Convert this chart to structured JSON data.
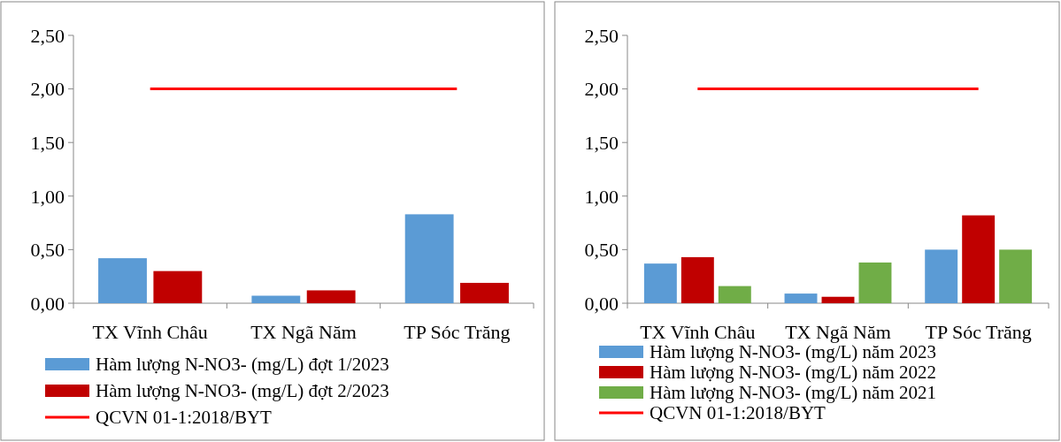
{
  "chart_data": [
    {
      "type": "bar",
      "categories": [
        "TX Vĩnh Châu",
        "TX Ngã Năm",
        "TP Sóc Trăng"
      ],
      "ylim": [
        0,
        2.5
      ],
      "yticks": [
        {
          "value": 0,
          "label": "0,00"
        },
        {
          "value": 0.5,
          "label": "0,50"
        },
        {
          "value": 1,
          "label": "1,00"
        },
        {
          "value": 1.5,
          "label": "1,50"
        },
        {
          "value": 2,
          "label": "2,00"
        },
        {
          "value": 2.5,
          "label": "2,50"
        }
      ],
      "legend": "bottom",
      "grid": false,
      "series": [
        {
          "name": "Hàm lượng N-NO3- (mg/L) đợt 1/2023",
          "color": "#5b9bd5",
          "values": [
            0.42,
            0.07,
            0.83
          ]
        },
        {
          "name": "Hàm lượng N-NO3- (mg/L) đợt 2/2023",
          "color": "#c00000",
          "values": [
            0.3,
            0.12,
            0.19
          ]
        },
        {
          "name": "QCVN 01-1:2018/BYT",
          "type": "line",
          "color": "#ff0000",
          "values": [
            2,
            2,
            2
          ]
        }
      ]
    },
    {
      "type": "bar",
      "categories": [
        "TX Vĩnh Châu",
        "TX Ngã Năm",
        "TP Sóc Trăng"
      ],
      "ylim": [
        0,
        2.5
      ],
      "yticks": [
        {
          "value": 0,
          "label": "0,00"
        },
        {
          "value": 0.5,
          "label": "0,50"
        },
        {
          "value": 1,
          "label": "1,00"
        },
        {
          "value": 1.5,
          "label": "1,50"
        },
        {
          "value": 2,
          "label": "2,00"
        },
        {
          "value": 2.5,
          "label": "2,50"
        }
      ],
      "legend": "bottom",
      "grid": false,
      "series": [
        {
          "name": "Hàm lượng N-NO3- (mg/L) năm 2023",
          "color": "#5b9bd5",
          "values": [
            0.37,
            0.09,
            0.5
          ]
        },
        {
          "name": "Hàm lượng N-NO3- (mg/L) năm 2022",
          "color": "#c00000",
          "values": [
            0.43,
            0.06,
            0.82
          ]
        },
        {
          "name": "Hàm lượng N-NO3- (mg/L) năm 2021",
          "color": "#70ad47",
          "values": [
            0.16,
            0.38,
            0.5
          ]
        },
        {
          "name": "QCVN 01-1:2018/BYT",
          "type": "line",
          "color": "#ff0000",
          "values": [
            2,
            2,
            2
          ]
        }
      ]
    }
  ]
}
